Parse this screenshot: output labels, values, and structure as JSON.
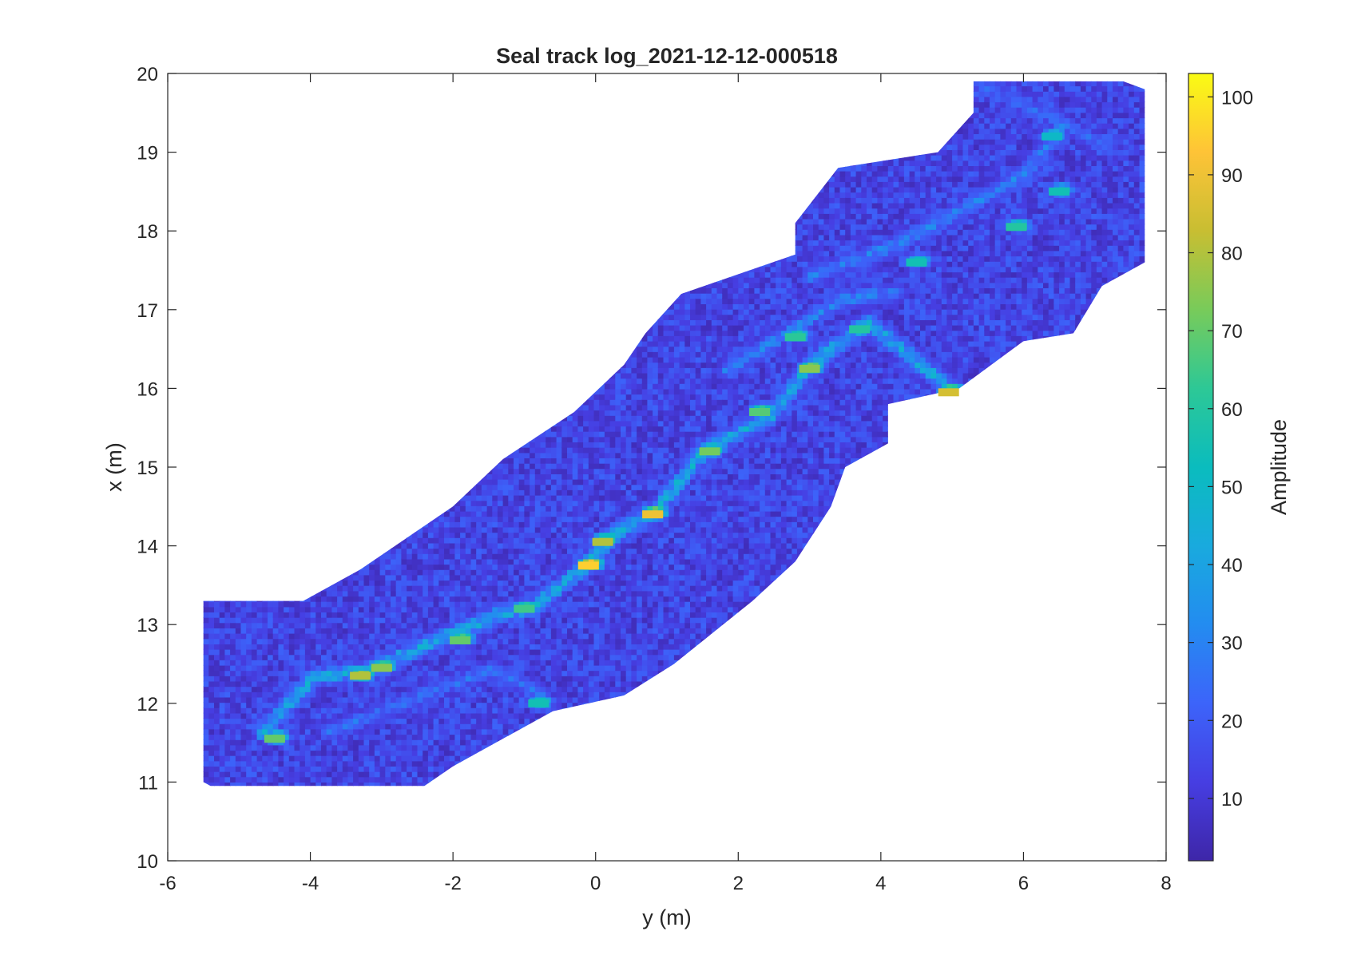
{
  "chart_data": {
    "type": "heatmap",
    "title": "Seal track log_2021-12-12-000518",
    "xlabel": "y (m)",
    "ylabel": "x (m)",
    "xlim": [
      -6,
      8
    ],
    "ylim": [
      10,
      20
    ],
    "xticks": [
      -6,
      -4,
      -2,
      0,
      2,
      4,
      6,
      8
    ],
    "yticks": [
      10,
      11,
      12,
      13,
      14,
      15,
      16,
      17,
      18,
      19,
      20
    ],
    "grid": false,
    "colorbar": {
      "label": "Amplitude",
      "range": [
        2,
        103
      ],
      "ticks": [
        10,
        20,
        30,
        40,
        50,
        60,
        70,
        80,
        90,
        100
      ],
      "colormap": "parula"
    },
    "coverage_region": {
      "left_edge": [
        [
          -5.5,
          11.0
        ],
        [
          -5.5,
          13.3
        ],
        [
          -4.1,
          13.3
        ],
        [
          -3.3,
          13.7
        ],
        [
          -2.0,
          14.5
        ],
        [
          -1.3,
          15.1
        ],
        [
          -0.3,
          15.7
        ],
        [
          0.4,
          16.3
        ],
        [
          0.7,
          16.7
        ],
        [
          1.2,
          17.2
        ],
        [
          2.8,
          17.7
        ],
        [
          2.8,
          18.1
        ],
        [
          3.4,
          18.8
        ],
        [
          4.8,
          19.0
        ],
        [
          5.3,
          19.5
        ],
        [
          5.3,
          19.9
        ],
        [
          7.4,
          19.9
        ],
        [
          7.7,
          19.8
        ]
      ],
      "right_edge": [
        [
          -5.4,
          10.95
        ],
        [
          -2.4,
          10.95
        ],
        [
          -2.0,
          11.2
        ],
        [
          -0.6,
          11.9
        ],
        [
          0.4,
          12.1
        ],
        [
          1.1,
          12.5
        ],
        [
          2.2,
          13.3
        ],
        [
          2.8,
          13.8
        ],
        [
          3.3,
          14.5
        ],
        [
          3.5,
          15.0
        ],
        [
          4.1,
          15.3
        ],
        [
          4.1,
          15.8
        ],
        [
          5.1,
          16.0
        ],
        [
          6.0,
          16.6
        ],
        [
          6.7,
          16.7
        ],
        [
          7.1,
          17.3
        ],
        [
          7.7,
          17.6
        ],
        [
          7.7,
          19.8
        ]
      ]
    },
    "ridges": [
      {
        "points": [
          [
            -4.7,
            11.6
          ],
          [
            -4.0,
            12.3
          ],
          [
            -3.2,
            12.4
          ],
          [
            -2.2,
            12.8
          ],
          [
            -1.4,
            13.1
          ],
          [
            -0.9,
            13.2
          ],
          [
            -0.2,
            13.7
          ],
          [
            0.2,
            14.1
          ],
          [
            0.8,
            14.4
          ],
          [
            1.5,
            15.2
          ],
          [
            2.4,
            15.6
          ],
          [
            3.0,
            16.3
          ],
          [
            3.8,
            16.8
          ],
          [
            4.9,
            16.0
          ]
        ],
        "peak": 90
      },
      {
        "points": [
          [
            -3.8,
            11.6
          ],
          [
            -2.4,
            12.1
          ],
          [
            -1.5,
            12.4
          ],
          [
            -0.8,
            12.1
          ]
        ],
        "peak": 50
      },
      {
        "points": [
          [
            1.8,
            16.2
          ],
          [
            2.7,
            16.7
          ],
          [
            3.4,
            17.1
          ],
          [
            4.2,
            17.2
          ]
        ],
        "peak": 60
      },
      {
        "points": [
          [
            3.0,
            17.4
          ],
          [
            4.2,
            17.8
          ],
          [
            5.2,
            18.3
          ],
          [
            6.0,
            18.7
          ],
          [
            6.5,
            19.3
          ]
        ],
        "peak": 60
      },
      {
        "points": [
          [
            5.4,
            19.8
          ],
          [
            6.4,
            19.4
          ],
          [
            7.2,
            19.0
          ]
        ],
        "peak": 45
      }
    ],
    "hotspots": [
      {
        "y": -0.1,
        "x": 13.75,
        "value": 95
      },
      {
        "y": 0.8,
        "x": 14.4,
        "value": 90
      },
      {
        "y": 0.1,
        "x": 14.05,
        "value": 80
      },
      {
        "y": -3.3,
        "x": 12.35,
        "value": 80
      },
      {
        "y": -3.0,
        "x": 12.45,
        "value": 75
      },
      {
        "y": 1.6,
        "x": 15.2,
        "value": 72
      },
      {
        "y": 3.0,
        "x": 16.25,
        "value": 75
      },
      {
        "y": 4.95,
        "x": 15.95,
        "value": 85
      },
      {
        "y": 2.3,
        "x": 15.7,
        "value": 68
      },
      {
        "y": -1.9,
        "x": 12.8,
        "value": 70
      },
      {
        "y": -1.0,
        "x": 13.2,
        "value": 65
      },
      {
        "y": -4.5,
        "x": 11.55,
        "value": 70
      },
      {
        "y": -0.8,
        "x": 12.0,
        "value": 55
      },
      {
        "y": 5.9,
        "x": 18.05,
        "value": 60
      },
      {
        "y": 6.5,
        "x": 18.5,
        "value": 55
      },
      {
        "y": 2.8,
        "x": 16.65,
        "value": 62
      },
      {
        "y": 3.7,
        "x": 16.75,
        "value": 60
      },
      {
        "y": 4.5,
        "x": 17.6,
        "value": 55
      },
      {
        "y": 6.4,
        "x": 19.2,
        "value": 50
      }
    ],
    "background_amplitude": [
      5,
      22
    ]
  }
}
